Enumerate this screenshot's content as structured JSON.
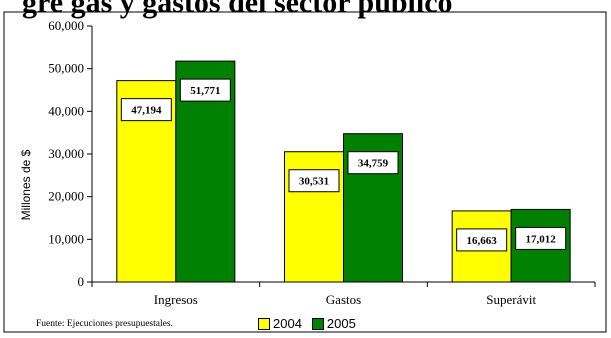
{
  "header": {
    "cut_title": "gre gas y gastos del sector público"
  },
  "chart_data": {
    "type": "bar",
    "categories": [
      "Ingresos",
      "Gastos",
      "Superávit"
    ],
    "series": [
      {
        "name": "2004",
        "values": [
          47194,
          30531,
          16663
        ],
        "labels": [
          "47,194",
          "30,531",
          "16,663"
        ],
        "color": "#ffff00"
      },
      {
        "name": "2005",
        "values": [
          51771,
          34759,
          17012
        ],
        "labels": [
          "51,771",
          "34,759",
          "17,012"
        ],
        "color": "#008000"
      }
    ],
    "ylabel": "Millones de $",
    "ylim": [
      0,
      60000
    ],
    "yticks": [
      0,
      10000,
      20000,
      30000,
      40000,
      50000,
      60000
    ],
    "ytick_labels": [
      "0",
      "10,000",
      "20,000",
      "30,000",
      "40,000",
      "50,000",
      "60,000"
    ],
    "grid": false,
    "legend": "bottom"
  },
  "footer": {
    "source": "Fuente: Ejecuciones presupuestales."
  }
}
